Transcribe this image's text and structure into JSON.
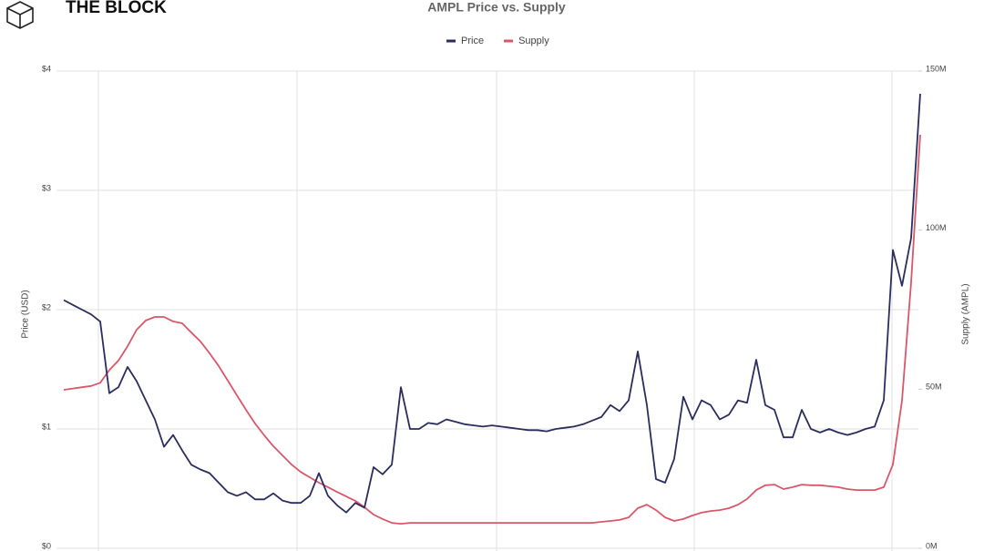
{
  "brand": "THE BLOCK",
  "chart_data": {
    "type": "line",
    "title": "AMPL Price vs. Supply",
    "ylabel": "Price (USD)",
    "y2label": "Supply (AMPL)",
    "ylim": [
      0,
      4
    ],
    "yticks": [
      {
        "value": 0,
        "label": "$0"
      },
      {
        "value": 1,
        "label": "$1"
      },
      {
        "value": 2,
        "label": "$2"
      },
      {
        "value": 3,
        "label": "$3"
      },
      {
        "value": 4,
        "label": "$4"
      }
    ],
    "y2lim": [
      0,
      150
    ],
    "y2ticks": [
      {
        "value": 0,
        "label": "0M"
      },
      {
        "value": 50,
        "label": "50M"
      },
      {
        "value": 100,
        "label": "100M"
      },
      {
        "value": 150,
        "label": "150M"
      }
    ],
    "grid": true,
    "legend": "top",
    "series": [
      {
        "name": "Price",
        "color": "#2b2d5c",
        "values": [
          2.08,
          2.04,
          2.0,
          1.96,
          1.9,
          1.3,
          1.35,
          1.52,
          1.4,
          1.24,
          1.08,
          0.85,
          0.95,
          0.82,
          0.7,
          0.66,
          0.63,
          0.55,
          0.47,
          0.44,
          0.47,
          0.41,
          0.41,
          0.46,
          0.4,
          0.38,
          0.38,
          0.44,
          0.63,
          0.44,
          0.36,
          0.3,
          0.38,
          0.34,
          0.68,
          0.62,
          0.7,
          1.35,
          1.0,
          1.0,
          1.05,
          1.04,
          1.08,
          1.06,
          1.04,
          1.03,
          1.02,
          1.03,
          1.02,
          1.01,
          1.0,
          0.99,
          0.99,
          0.98,
          1.0,
          1.01,
          1.02,
          1.04,
          1.07,
          1.1,
          1.2,
          1.15,
          1.24,
          1.65,
          1.2,
          0.58,
          0.55,
          0.75,
          1.27,
          1.08,
          1.24,
          1.2,
          1.08,
          1.12,
          1.24,
          1.22,
          1.58,
          1.2,
          1.16,
          0.93,
          0.93,
          1.16,
          1.0,
          0.97,
          1.0,
          0.97,
          0.95,
          0.97,
          1.0,
          1.02,
          1.24,
          2.5,
          2.2,
          2.6,
          3.81
        ]
      },
      {
        "name": "Supply",
        "color": "#d9576b",
        "axis": "y2",
        "values": [
          49.8,
          50.2,
          50.6,
          51,
          52,
          56,
          59,
          63.5,
          68.7,
          71.6,
          72.7,
          72.7,
          71.3,
          70.7,
          67.8,
          65,
          61.3,
          57.3,
          52.7,
          48.1,
          43.5,
          39.2,
          35.5,
          32.1,
          29.2,
          26.3,
          24,
          22.3,
          20.6,
          19.2,
          17.7,
          16.3,
          14.9,
          12.9,
          10.6,
          9.2,
          8.0,
          7.7,
          8.0,
          8.0,
          8.0,
          8.0,
          8.0,
          8.0,
          8.0,
          8.0,
          8.0,
          8.0,
          8.0,
          8.0,
          8.0,
          8.0,
          8.0,
          8.0,
          8.0,
          8.0,
          8.0,
          8.0,
          8.0,
          8.3,
          8.6,
          8.9,
          9.7,
          12.6,
          13.7,
          12,
          9.7,
          8.6,
          9.2,
          10.3,
          11.2,
          11.7,
          12,
          12.6,
          13.7,
          15.5,
          18.3,
          19.8,
          20,
          18.6,
          19.2,
          20,
          19.8,
          19.8,
          19.5,
          19.2,
          18.6,
          18.3,
          18.3,
          18.3,
          19.2,
          26.3,
          46.4,
          83.6,
          130
        ]
      }
    ]
  }
}
